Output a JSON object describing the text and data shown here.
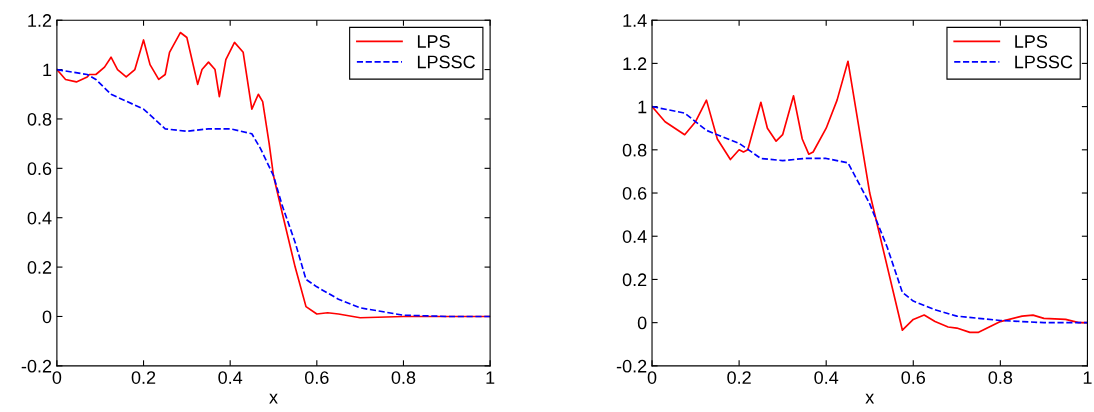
{
  "chart_data": [
    {
      "type": "line",
      "xlabel": "x",
      "xlim": [
        0,
        1
      ],
      "xticks": [
        0,
        0.2,
        0.4,
        0.6,
        0.8,
        1
      ],
      "ylim": [
        -0.2,
        1.2
      ],
      "yticks": [
        -0.2,
        0,
        0.2,
        0.4,
        0.6,
        0.8,
        1,
        1.2
      ],
      "legend": "top right",
      "grid": false,
      "series": [
        {
          "name": "LPS",
          "color": "#ff0000",
          "line_style": "solid",
          "x": [
            0,
            0.02,
            0.045,
            0.07,
            0.075,
            0.09,
            0.11,
            0.125,
            0.14,
            0.16,
            0.18,
            0.2,
            0.215,
            0.235,
            0.25,
            0.26,
            0.285,
            0.3,
            0.325,
            0.335,
            0.35,
            0.365,
            0.375,
            0.39,
            0.41,
            0.43,
            0.45,
            0.465,
            0.475,
            0.49,
            0.5,
            0.52,
            0.55,
            0.575,
            0.6,
            0.625,
            0.65,
            0.7,
            0.8,
            1.0
          ],
          "values": [
            1.0,
            0.96,
            0.95,
            0.97,
            0.98,
            0.98,
            1.01,
            1.05,
            1.0,
            0.97,
            1.0,
            1.12,
            1.02,
            0.96,
            0.98,
            1.07,
            1.15,
            1.13,
            0.94,
            1.0,
            1.03,
            1.0,
            0.89,
            1.04,
            1.11,
            1.07,
            0.84,
            0.9,
            0.87,
            0.7,
            0.57,
            0.42,
            0.2,
            0.04,
            0.01,
            0.015,
            0.01,
            -0.005,
            0.0,
            0.0
          ]
        },
        {
          "name": "LPSSC",
          "color": "#0000ff",
          "line_style": "dashed",
          "x": [
            0,
            0.07,
            0.09,
            0.125,
            0.2,
            0.25,
            0.3,
            0.35,
            0.4,
            0.45,
            0.47,
            0.5,
            0.52,
            0.55,
            0.575,
            0.6,
            0.65,
            0.7,
            0.75,
            0.8,
            0.9,
            1.0
          ],
          "values": [
            1.0,
            0.98,
            0.96,
            0.9,
            0.84,
            0.76,
            0.75,
            0.76,
            0.76,
            0.74,
            0.68,
            0.57,
            0.45,
            0.3,
            0.15,
            0.12,
            0.07,
            0.035,
            0.02,
            0.005,
            0.0,
            0.0
          ]
        }
      ]
    },
    {
      "type": "line",
      "xlabel": "x",
      "xlim": [
        0,
        1
      ],
      "xticks": [
        0,
        0.2,
        0.4,
        0.6,
        0.8,
        1
      ],
      "ylim": [
        -0.2,
        1.4
      ],
      "yticks": [
        -0.2,
        0,
        0.2,
        0.4,
        0.6,
        0.8,
        1,
        1.2,
        1.4
      ],
      "legend": "top right",
      "grid": false,
      "series": [
        {
          "name": "LPS",
          "color": "#ff0000",
          "line_style": "solid",
          "x": [
            0,
            0.03,
            0.075,
            0.1,
            0.125,
            0.15,
            0.18,
            0.2,
            0.21,
            0.22,
            0.25,
            0.265,
            0.285,
            0.3,
            0.325,
            0.345,
            0.36,
            0.37,
            0.4,
            0.425,
            0.45,
            0.5,
            0.575,
            0.6,
            0.625,
            0.65,
            0.68,
            0.7,
            0.73,
            0.75,
            0.8,
            0.85,
            0.875,
            0.9,
            0.95,
            0.98,
            1.0
          ],
          "values": [
            1.0,
            0.93,
            0.87,
            0.93,
            1.03,
            0.85,
            0.755,
            0.8,
            0.79,
            0.8,
            1.02,
            0.9,
            0.84,
            0.87,
            1.05,
            0.85,
            0.78,
            0.79,
            0.9,
            1.03,
            1.21,
            0.6,
            -0.035,
            0.015,
            0.035,
            0.005,
            -0.02,
            -0.025,
            -0.045,
            -0.045,
            0.005,
            0.03,
            0.035,
            0.02,
            0.015,
            0.0,
            0.0
          ]
        },
        {
          "name": "LPSSC",
          "color": "#0000ff",
          "line_style": "dashed",
          "x": [
            0,
            0.075,
            0.125,
            0.2,
            0.25,
            0.3,
            0.35,
            0.4,
            0.45,
            0.5,
            0.54,
            0.575,
            0.6,
            0.65,
            0.7,
            0.75,
            0.8,
            0.9,
            1.0
          ],
          "values": [
            1.0,
            0.97,
            0.89,
            0.83,
            0.76,
            0.75,
            0.76,
            0.76,
            0.74,
            0.55,
            0.35,
            0.14,
            0.1,
            0.06,
            0.03,
            0.02,
            0.01,
            0.0,
            0.0
          ]
        }
      ]
    }
  ]
}
